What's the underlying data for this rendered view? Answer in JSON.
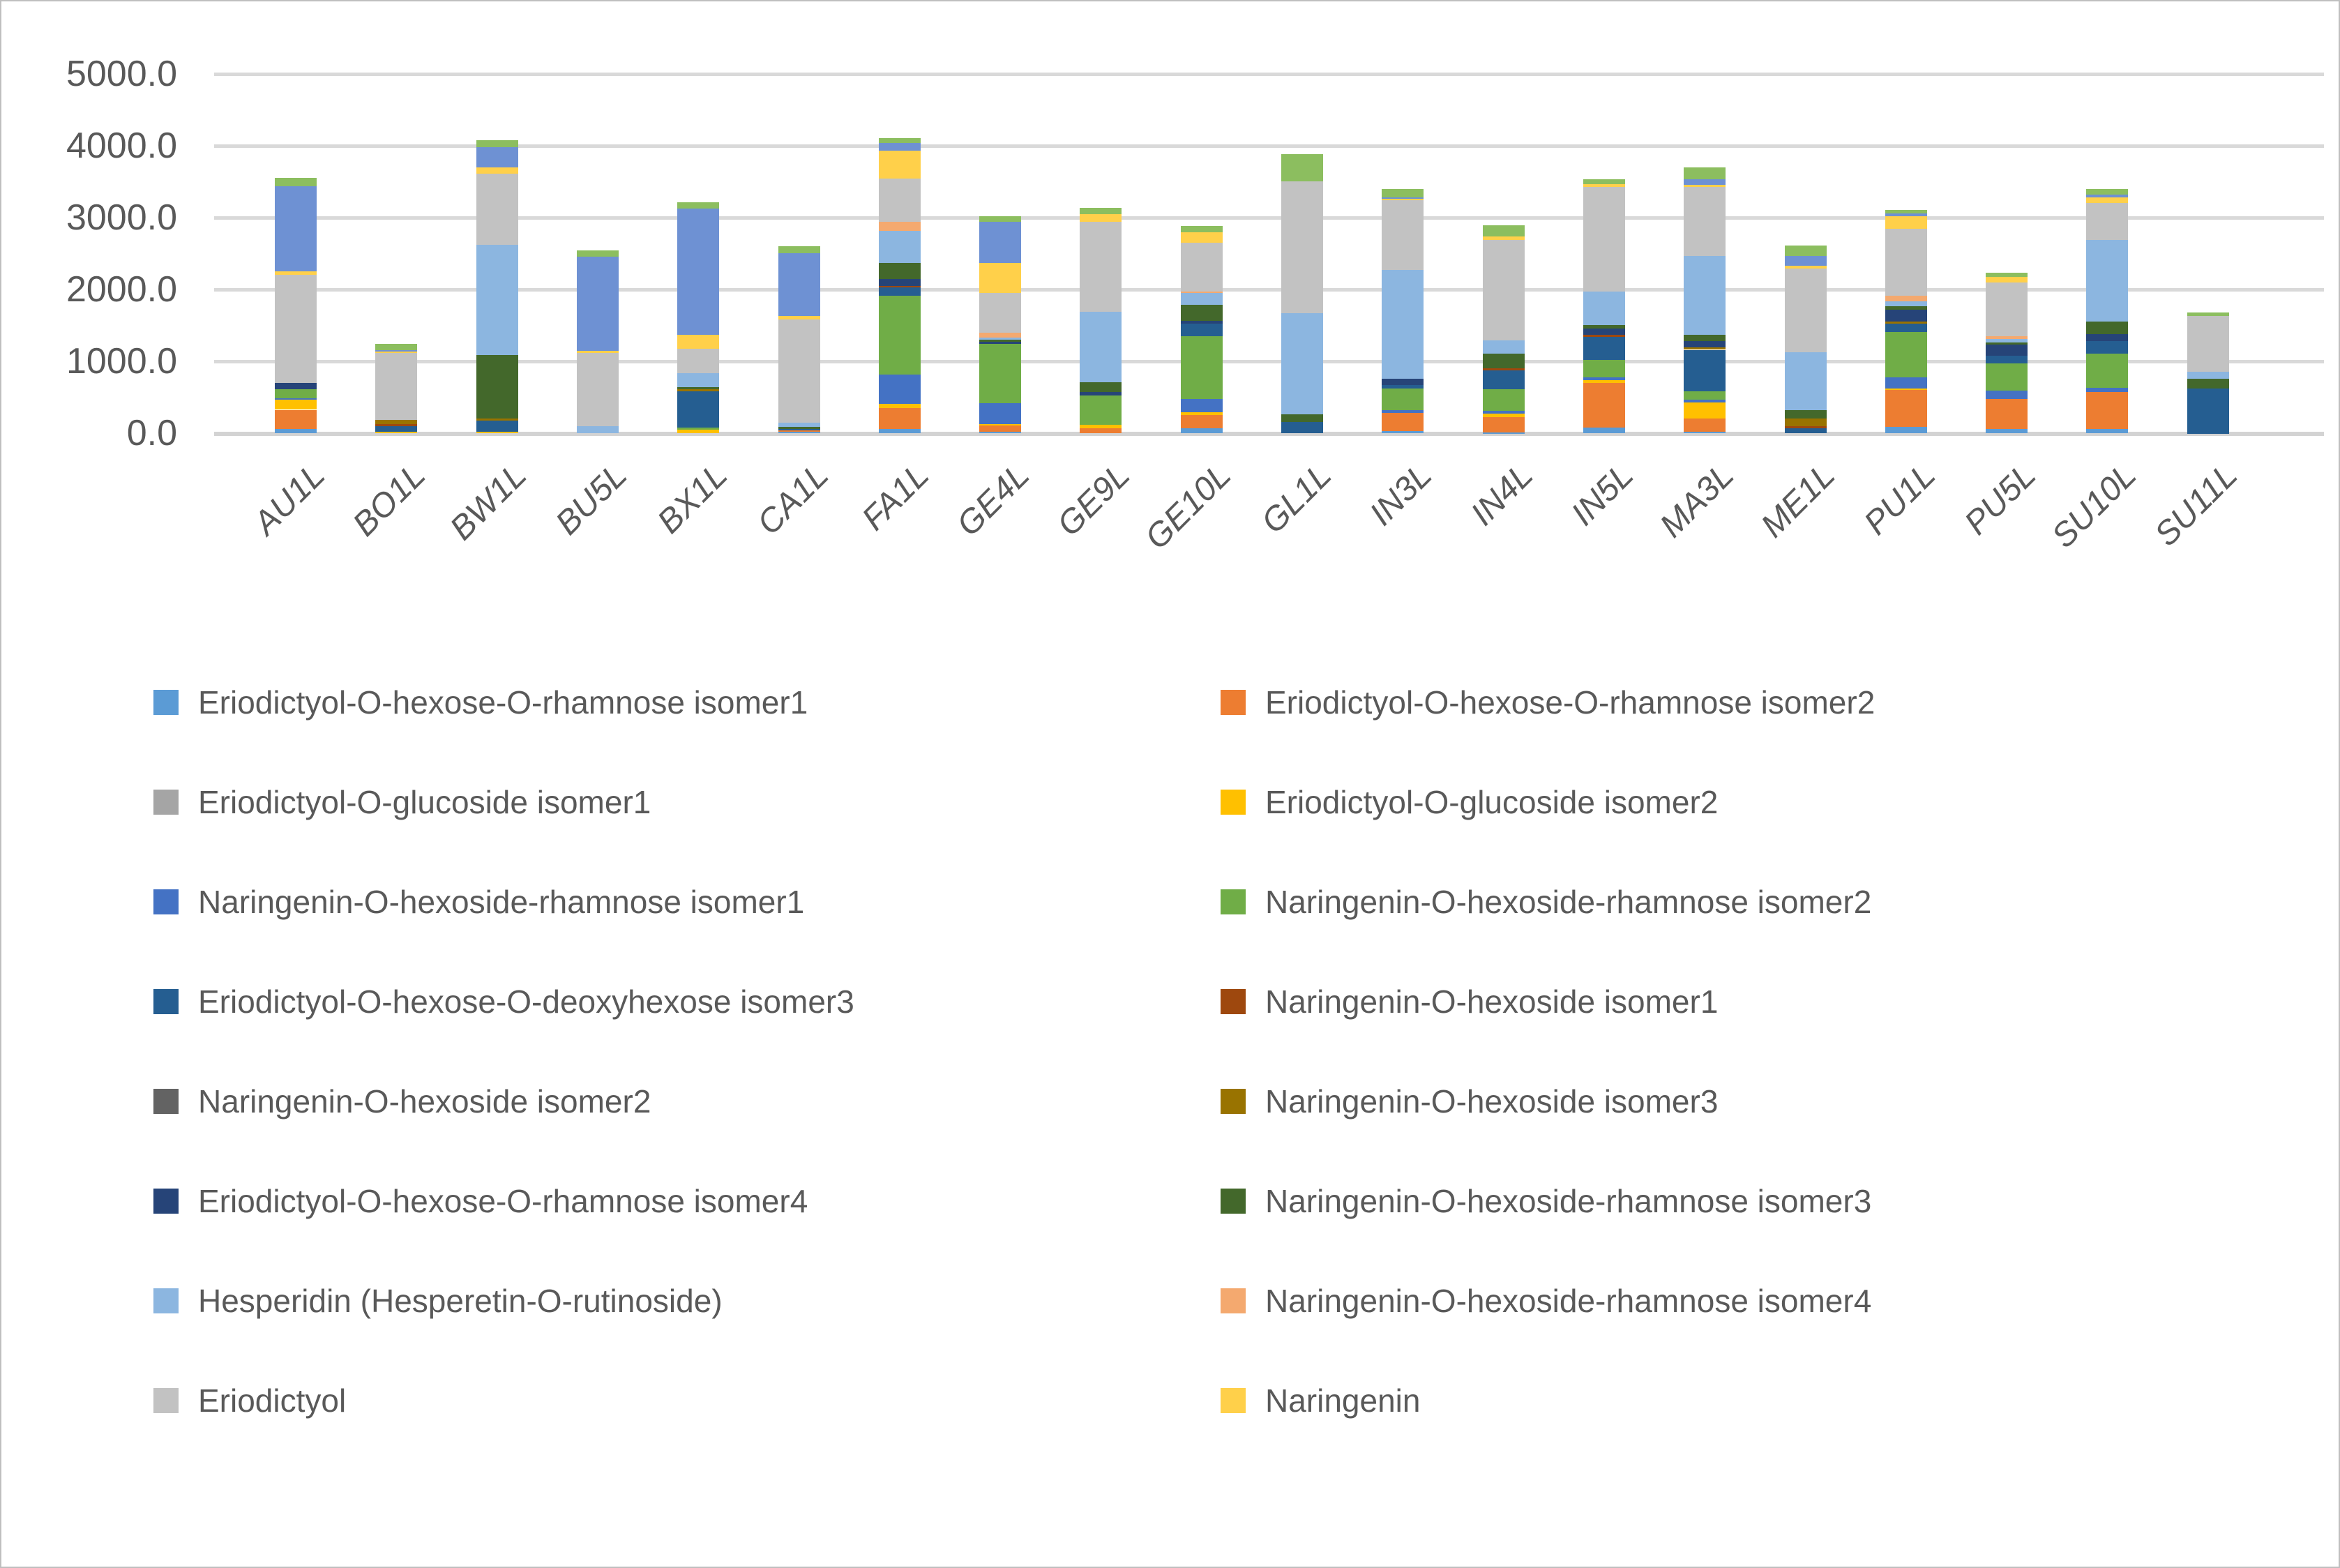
{
  "chart_data": {
    "type": "bar",
    "stacked": true,
    "title": "",
    "xlabel": "",
    "ylabel": "",
    "ylim": [
      0,
      5000
    ],
    "y_tick_step": 1000,
    "y_tick_labels": [
      "0.0",
      "1000.0",
      "2000.0",
      "3000.0",
      "4000.0",
      "5000.0"
    ],
    "grid": true,
    "legend_position": "bottom",
    "legend_columns": 2,
    "axis_text_color": "#595959",
    "gridline_color": "#d9d9d9",
    "categories": [
      "AU1L",
      "BO1L",
      "BW1L",
      "BU5L",
      "BX1L",
      "CA1L",
      "FA1L",
      "GE4L",
      "GE9L",
      "GE10L",
      "GL1L",
      "IN3L",
      "IN4L",
      "IN5L",
      "MA3L",
      "ME1L",
      "PU1L",
      "PU5L",
      "SU10L",
      "SU11L"
    ],
    "series": [
      {
        "name": "Eriodictyol-O-hexose-O-rhamnose isomer1",
        "color": "#5B9BD5",
        "in_legend": true,
        "values": [
          65,
          0,
          0,
          0,
          0,
          25,
          65,
          20,
          0,
          70,
          0,
          35,
          10,
          85,
          20,
          0,
          95,
          60,
          60,
          0
        ]
      },
      {
        "name": "Eriodictyol-O-hexose-O-rhamnose isomer2",
        "color": "#ED7D31",
        "in_legend": true,
        "values": [
          265,
          0,
          0,
          0,
          0,
          20,
          285,
          90,
          70,
          185,
          0,
          255,
          215,
          620,
          190,
          0,
          510,
          420,
          515,
          0
        ]
      },
      {
        "name": "Eriodictyol-O-glucoside isomer1",
        "color": "#A5A5A5",
        "in_legend": true,
        "values": [
          0,
          0,
          0,
          0,
          0,
          0,
          0,
          0,
          0,
          0,
          0,
          0,
          0,
          0,
          0,
          0,
          0,
          0,
          0,
          0
        ]
      },
      {
        "name": "Eriodictyol-O-glucoside isomer2",
        "color": "#FFC000",
        "in_legend": true,
        "values": [
          140,
          20,
          25,
          0,
          50,
          0,
          65,
          25,
          50,
          40,
          0,
          0,
          50,
          40,
          225,
          0,
          25,
          0,
          0,
          0
        ]
      },
      {
        "name": "Naringenin-O-hexoside-rhamnose isomer1",
        "color": "#4472C4",
        "in_legend": true,
        "values": [
          20,
          0,
          0,
          0,
          0,
          0,
          405,
          290,
          0,
          190,
          0,
          40,
          45,
          35,
          35,
          0,
          155,
          120,
          60,
          0
        ]
      },
      {
        "name": "Naringenin-O-hexoside-rhamnose isomer2",
        "color": "#70AD47",
        "in_legend": true,
        "values": [
          125,
          0,
          0,
          0,
          35,
          0,
          1100,
          820,
          410,
          870,
          0,
          295,
          300,
          245,
          120,
          0,
          630,
          375,
          475,
          0
        ]
      },
      {
        "name": "Eriodictyol-O-hexose-O-deoxyhexose isomer3",
        "color": "#255E91",
        "in_legend": true,
        "values": [
          0,
          85,
          150,
          0,
          500,
          15,
          115,
          0,
          0,
          175,
          160,
          50,
          255,
          315,
          575,
          70,
          110,
          105,
          175,
          625
        ]
      },
      {
        "name": "Naringenin-O-hexoside isomer1",
        "color": "#9E480E",
        "in_legend": true,
        "values": [
          0,
          30,
          0,
          0,
          0,
          0,
          20,
          0,
          0,
          0,
          0,
          0,
          35,
          35,
          0,
          35,
          0,
          0,
          0,
          0
        ]
      },
      {
        "name": "Naringenin-O-hexoside isomer2",
        "color": "#636363",
        "in_legend": true,
        "values": [
          0,
          0,
          0,
          0,
          0,
          0,
          0,
          0,
          0,
          0,
          0,
          0,
          0,
          0,
          0,
          0,
          0,
          0,
          0,
          0
        ]
      },
      {
        "name": "Naringenin-O-hexoside isomer3",
        "color": "#997300",
        "in_legend": true,
        "values": [
          0,
          50,
          30,
          0,
          30,
          0,
          0,
          0,
          0,
          0,
          0,
          0,
          0,
          0,
          35,
          105,
          30,
          0,
          0,
          0
        ]
      },
      {
        "name": "Eriodictyol-O-hexose-O-rhamnose isomer4",
        "color": "#264478",
        "in_legend": true,
        "values": [
          90,
          0,
          0,
          0,
          0,
          0,
          95,
          35,
          50,
          35,
          0,
          85,
          0,
          85,
          90,
          0,
          165,
          160,
          100,
          0
        ]
      },
      {
        "name": "Naringenin-O-hexoside-rhamnose isomer3",
        "color": "#43682B",
        "in_legend": true,
        "values": [
          0,
          0,
          890,
          0,
          35,
          35,
          225,
          30,
          130,
          225,
          105,
          0,
          200,
          50,
          85,
          115,
          50,
          30,
          175,
          140
        ]
      },
      {
        "name": "Hesperidin (Hesperetin-O-rutinoside)",
        "color": "#8CB6E0",
        "in_legend": true,
        "values": [
          0,
          0,
          1530,
          100,
          190,
          55,
          450,
          25,
          985,
          165,
          1410,
          1515,
          190,
          470,
          1095,
          810,
          65,
          50,
          1130,
          95
        ]
      },
      {
        "name": "Naringenin-O-hexoside-rhamnose isomer4",
        "color": "#F4A96F",
        "in_legend": true,
        "values": [
          0,
          0,
          0,
          0,
          0,
          0,
          120,
          70,
          0,
          25,
          0,
          0,
          0,
          0,
          0,
          0,
          85,
          30,
          0,
          0
        ]
      },
      {
        "name": "Eriodictyol",
        "color": "#C2C2C2",
        "in_legend": true,
        "values": [
          1505,
          940,
          995,
          1020,
          340,
          1440,
          600,
          555,
          1255,
          680,
          1830,
          975,
          1395,
          1455,
          960,
          1165,
          925,
          750,
          520,
          775
        ]
      },
      {
        "name": "Naringenin",
        "color": "#FFD04A",
        "in_legend": true,
        "values": [
          50,
          15,
          85,
          30,
          190,
          50,
          390,
          415,
          100,
          145,
          0,
          20,
          50,
          40,
          35,
          35,
          175,
          75,
          80,
          0
        ]
      },
      {
        "name": "",
        "color": "#6E91D3",
        "in_legend": false,
        "values": [
          1185,
          20,
          280,
          1315,
          1765,
          865,
          105,
          575,
          0,
          0,
          0,
          15,
          0,
          0,
          75,
          140,
          40,
          0,
          40,
          0
        ]
      },
      {
        "name": "",
        "color": "#8CBE5F",
        "in_legend": false,
        "values": [
          115,
          90,
          95,
          85,
          80,
          105,
          70,
          70,
          95,
          80,
          385,
          120,
          155,
          60,
          160,
          140,
          50,
          60,
          75,
          45
        ]
      }
    ]
  }
}
